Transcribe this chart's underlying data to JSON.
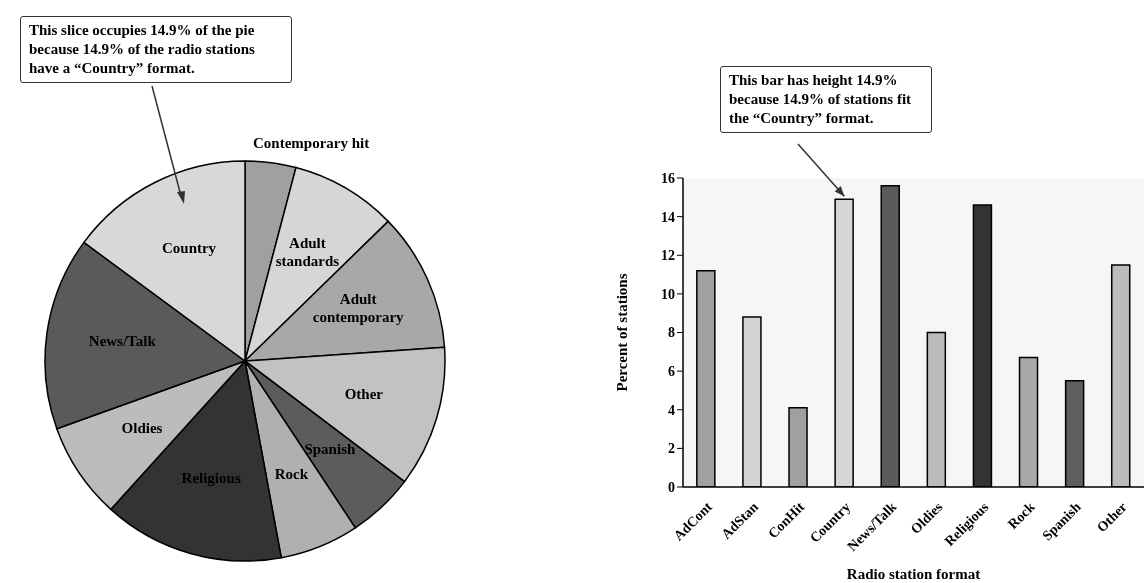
{
  "chart_data": [
    {
      "type": "pie",
      "categories": [
        "Contemporary hit",
        "Adult standards",
        "Adult contemporary",
        "Other",
        "Spanish",
        "Rock",
        "Religious",
        "Oldies",
        "News/Talk",
        "Country"
      ],
      "values": [
        4.1,
        8.6,
        11.2,
        11.4,
        5.4,
        6.4,
        14.6,
        7.8,
        15.6,
        14.9
      ],
      "colors": [
        "#a0a0a0",
        "#d6d6d6",
        "#a8a8a8",
        "#c2c2c2",
        "#5c5c5c",
        "#b0b0b0",
        "#333333",
        "#bcbcbc",
        "#5a5a5a",
        "#d8d8d8"
      ],
      "annotations": [
        "This slice occupies 14.9% of the pie because 14.9% of the radio stations have a “Country” format."
      ]
    },
    {
      "type": "bar",
      "categories": [
        "AdCont",
        "AdStan",
        "ConHit",
        "Country",
        "News/Talk",
        "Oldies",
        "Religious",
        "Rock",
        "Spanish",
        "Other"
      ],
      "values": [
        11.2,
        8.8,
        4.1,
        14.9,
        15.6,
        8.0,
        14.6,
        6.7,
        5.5,
        11.5
      ],
      "colors": [
        "#a0a0a0",
        "#d4d4d4",
        "#a0a0a0",
        "#d6d6d6",
        "#5a5a5a",
        "#bbbbbb",
        "#333333",
        "#a8a8a8",
        "#5e5e5e",
        "#bcbcbc"
      ],
      "xlabel": "Radio station format",
      "ylabel": "Percent of stations",
      "ylim": [
        0,
        16
      ],
      "yticks": [
        0,
        2,
        4,
        6,
        8,
        10,
        12,
        14,
        16
      ],
      "annotations": [
        {
          "text": "This bar has height 14.9% because 14.9% of stations fit the “Country” format.",
          "x": "Country",
          "y": 14.9
        }
      ]
    }
  ]
}
